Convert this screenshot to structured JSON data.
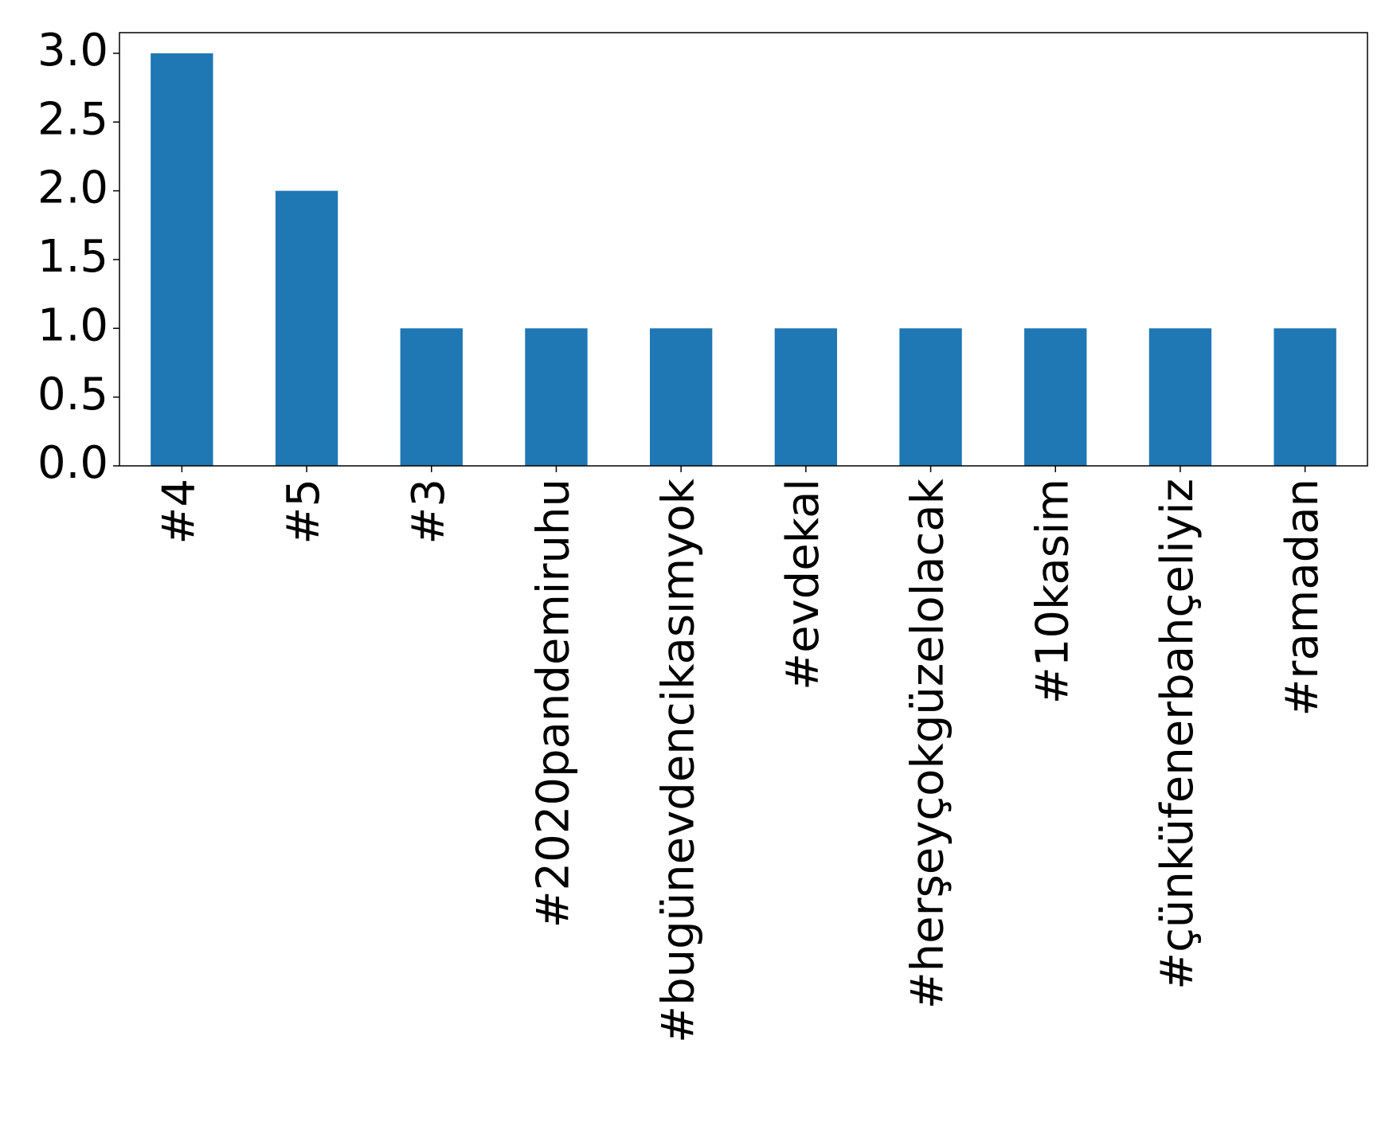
{
  "chart_data": {
    "type": "bar",
    "categories": [
      "#4",
      "#5",
      "#3",
      "#2020pandemiruhu",
      "#bugünevdencikasımyok",
      "#evdekal",
      "#herşeyçokgüzelolacak",
      "#10kasim",
      "#çünküfenerbahçeliyiz",
      "#ramadan"
    ],
    "values": [
      3,
      2,
      1,
      1,
      1,
      1,
      1,
      1,
      1,
      1
    ],
    "color": "#1f77b4",
    "ylim": [
      0,
      3.15
    ],
    "yticks": [
      {
        "value": 0,
        "label": "0.0"
      },
      {
        "value": 0.5,
        "label": "0.5"
      },
      {
        "value": 1,
        "label": "1.0"
      },
      {
        "value": 1.5,
        "label": "1.5"
      },
      {
        "value": 2,
        "label": "2.0"
      },
      {
        "value": 2.5,
        "label": "2.5"
      },
      {
        "value": 3,
        "label": "3.0"
      }
    ],
    "grid": false
  }
}
